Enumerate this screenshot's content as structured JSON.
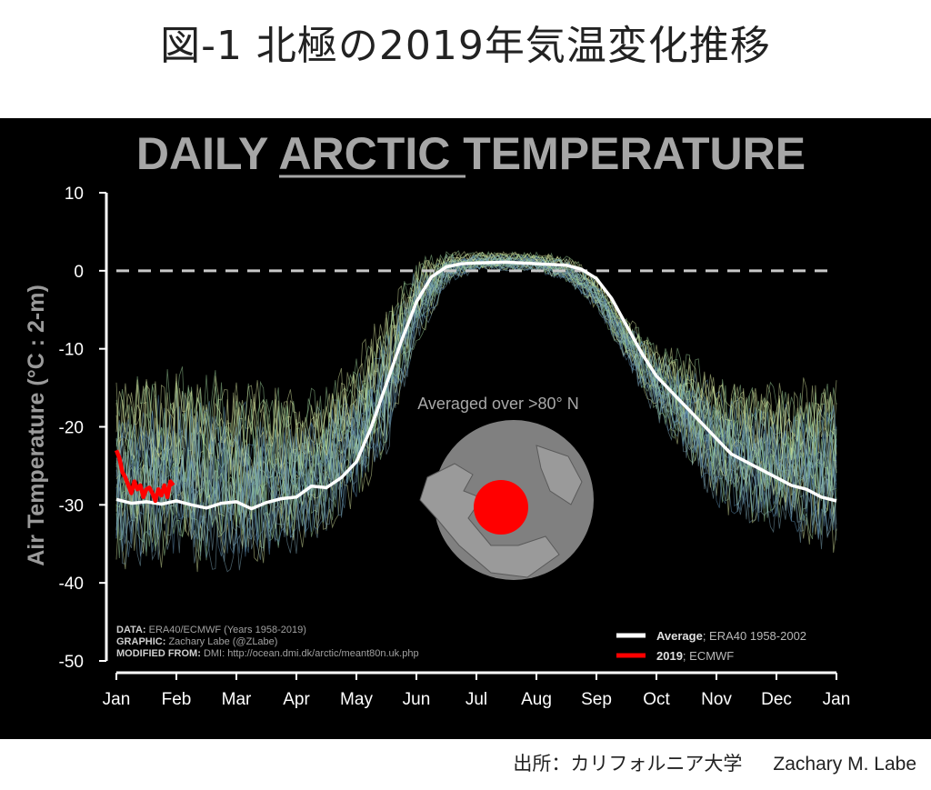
{
  "page": {
    "title": "図-1 北極の2019年気温変化推移",
    "source_label": "出所：カリフォルニア大学",
    "source_author": "Zachary M. Labe"
  },
  "chart_data": {
    "type": "line",
    "title_parts": [
      "DAILY ",
      "ARCTIC",
      " TEMPERATURE"
    ],
    "ylabel": "Air Temperature (°C : 2-m)",
    "ylim": [
      -50,
      10
    ],
    "yticks": [
      "10",
      "0",
      "-10",
      "-20",
      "-30",
      "-40",
      "-50"
    ],
    "ytick_values": [
      10,
      0,
      -10,
      -20,
      -30,
      -40,
      -50
    ],
    "xlabel": "",
    "months": [
      "Jan",
      "Feb",
      "Mar",
      "Apr",
      "May",
      "Jun",
      "Jul",
      "Aug",
      "Sep",
      "Oct",
      "Nov",
      "Dec",
      "Jan"
    ],
    "reference_line": {
      "y": 0,
      "style": "dashed"
    },
    "series": [
      {
        "name": "Average",
        "legend_bold": "Average",
        "legend_rest": "; ERA40 1958-2002",
        "color": "#ffffff",
        "x_month": [
          0,
          0.25,
          0.5,
          0.75,
          1.0,
          1.25,
          1.5,
          1.75,
          2.0,
          2.25,
          2.5,
          2.75,
          3.0,
          3.25,
          3.5,
          3.75,
          4.0,
          4.25,
          4.5,
          4.75,
          5.0,
          5.25,
          5.5,
          5.75,
          6.0,
          6.5,
          7.0,
          7.5,
          7.75,
          8.0,
          8.25,
          8.5,
          8.75,
          9.0,
          9.25,
          9.5,
          9.75,
          10.0,
          10.25,
          10.5,
          10.75,
          11.0,
          11.25,
          11.5,
          11.75,
          12.0
        ],
        "y": [
          -29.3,
          -29.8,
          -29.6,
          -29.9,
          -29.5,
          -30.0,
          -30.4,
          -29.8,
          -29.6,
          -30.5,
          -29.7,
          -29.2,
          -29.0,
          -27.6,
          -27.8,
          -26.5,
          -24.5,
          -20.0,
          -14.5,
          -9.0,
          -4.0,
          -0.8,
          0.5,
          0.9,
          1.0,
          1.1,
          0.9,
          0.7,
          0.2,
          -1.0,
          -3.5,
          -7.0,
          -10.5,
          -13.5,
          -15.5,
          -17.5,
          -19.5,
          -21.5,
          -23.5,
          -24.5,
          -25.5,
          -26.5,
          -27.5,
          -28.0,
          -29.0,
          -29.5
        ]
      },
      {
        "name": "2019",
        "legend_bold": "2019",
        "legend_rest": "; ECMWF",
        "color": "#ff0000",
        "x_month": [
          0,
          0.05,
          0.1,
          0.15,
          0.2,
          0.25,
          0.3,
          0.35,
          0.4,
          0.45,
          0.5,
          0.55,
          0.6,
          0.65,
          0.7,
          0.75,
          0.8,
          0.85,
          0.9,
          0.95
        ],
        "y": [
          -23.0,
          -24.0,
          -25.8,
          -26.5,
          -27.5,
          -28.5,
          -27.0,
          -28.0,
          -27.5,
          -29.0,
          -28.0,
          -27.8,
          -28.5,
          -29.5,
          -28.0,
          -28.8,
          -27.5,
          -29.0,
          -27.0,
          -27.5
        ]
      }
    ],
    "spread": {
      "x_month": [
        0,
        1,
        2,
        3,
        3.5,
        4,
        4.5,
        5,
        5.5,
        6,
        7,
        7.5,
        8,
        8.5,
        9,
        9.5,
        10,
        11,
        12
      ],
      "upper": [
        -14,
        -13,
        -14,
        -16,
        -15,
        -11,
        -5,
        1.5,
        2.5,
        2.5,
        2.3,
        2.0,
        -0.5,
        -6,
        -9,
        -11,
        -13,
        -15,
        -13
      ],
      "lower": [
        -38,
        -38,
        -39,
        -36,
        -34,
        -30,
        -24,
        -10,
        -2,
        0,
        -0.2,
        -1.5,
        -5,
        -12,
        -19,
        -24,
        -31,
        -34,
        -36
      ],
      "colors": [
        "#7fa8b8",
        "#9fd49a",
        "#d8e8a0",
        "#5e8fb2"
      ]
    },
    "credits": [
      {
        "bold": "DATA:",
        "rest": " ERA40/ECMWF (Years 1958-2019)"
      },
      {
        "bold": "GRAPHIC:",
        "rest": " Zachary Labe (@ZLabe)"
      },
      {
        "bold": "MODIFIED FROM:",
        "rest": " DMI: http://ocean.dmi.dk/arctic/meant80n.uk.php"
      }
    ],
    "inset_label": "Averaged over >80° N",
    "grid": false,
    "legend_position": "bottom-right"
  }
}
